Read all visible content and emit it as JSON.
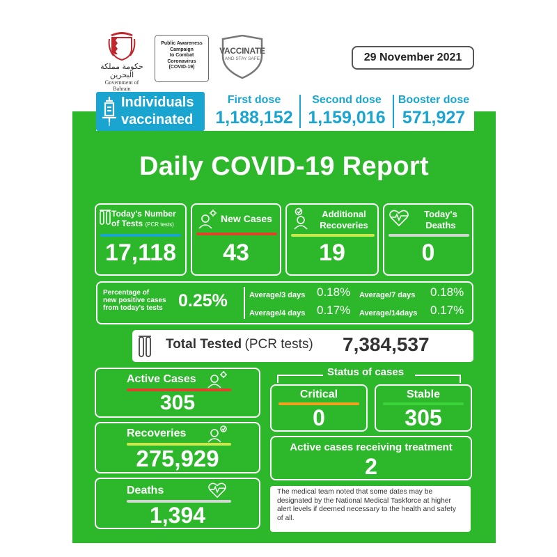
{
  "header": {
    "gov_arabic": "حكومة مملكة البحرين",
    "gov_english": "Government of Bahrain",
    "campaign_lines": [
      "Public Awareness",
      "Campaign",
      "to Combat",
      "Coronavirus",
      "(COVID-19)"
    ],
    "vaccinate_title": "VACCINATE",
    "vaccinate_sub": "AND STAY SAFE",
    "date": "29 November 2021"
  },
  "vaccination": {
    "label_line1": "Individuals",
    "label_line2": "vaccinated",
    "first_dose_label": "First dose",
    "first_dose_value": "1,188,152",
    "second_dose_label": "Second dose",
    "second_dose_value": "1,159,016",
    "booster_dose_label": "Booster dose",
    "booster_dose_value": "571,927"
  },
  "report_title": "Daily COVID-19 Report",
  "tests_card": {
    "label_line1": "Today's Number",
    "label_line2": "of Tests",
    "label_small": "(PCR tests)",
    "value": "17,118"
  },
  "new_cases_card": {
    "label": "New Cases",
    "value": "43"
  },
  "recoveries_card": {
    "label_line1": "Additional",
    "label_line2": "Recoveries",
    "value": "19"
  },
  "deaths_card": {
    "label_line1": "Today's",
    "label_line2": "Deaths",
    "value": "0"
  },
  "percentage": {
    "label_line1": "Percentage of",
    "label_line2": "new positive cases",
    "label_line3": "from today's tests",
    "value": "0.25%",
    "avg3_label": "Average/3 days",
    "avg3_value": "0.18%",
    "avg7_label": "Average/7 days",
    "avg7_value": "0.18%",
    "avg4_label": "Average/4 days",
    "avg4_value": "0.17%",
    "avg14_label": "Average/14days",
    "avg14_value": "0.17%"
  },
  "total_tested": {
    "label_bold": "Total Tested",
    "label_normal": "(PCR tests)",
    "value": "7,384,537"
  },
  "active_cases": {
    "label": "Active Cases",
    "value": "305"
  },
  "recoveries_total": {
    "label": "Recoveries",
    "value": "275,929"
  },
  "deaths_total": {
    "label": "Deaths",
    "value": "1,394"
  },
  "status": {
    "title": "Status of cases",
    "critical_label": "Critical",
    "critical_value": "0",
    "stable_label": "Stable",
    "stable_value": "305"
  },
  "treatment": {
    "label": "Active cases receiving treatment",
    "value": "2"
  },
  "note": "The medical team noted that some dates may be designated by the National Medical Taskforce at higher alert levels if deemed necessary to the health and safety of all.",
  "colors": {
    "green": "#2db82c",
    "blue": "#1aa5d1",
    "red_bar": "#e2432c",
    "lime_bar": "#c8e84b",
    "gray_bar": "#cfd8d0",
    "orange_bar": "#f2a01e",
    "green_bar": "#3bd23a"
  }
}
